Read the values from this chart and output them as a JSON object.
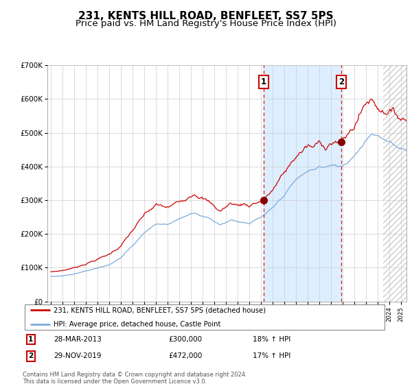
{
  "title": "231, KENTS HILL ROAD, BENFLEET, SS7 5PS",
  "subtitle": "Price paid vs. HM Land Registry's House Price Index (HPI)",
  "ylim": [
    0,
    700000
  ],
  "yticks": [
    0,
    100000,
    200000,
    300000,
    400000,
    500000,
    600000,
    700000
  ],
  "ytick_labels": [
    "£0",
    "£100K",
    "£200K",
    "£300K",
    "£400K",
    "£500K",
    "£600K",
    "£700K"
  ],
  "title_fontsize": 11,
  "subtitle_fontsize": 9.5,
  "legend_label_red": "231, KENTS HILL ROAD, BENFLEET, SS7 5PS (detached house)",
  "legend_label_blue": "HPI: Average price, detached house, Castle Point",
  "annotation1_date": "28-MAR-2013",
  "annotation1_price": "£300,000",
  "annotation1_hpi": "18% ↑ HPI",
  "annotation1_year": 2013.25,
  "annotation1_value": 300000,
  "annotation2_date": "29-NOV-2019",
  "annotation2_price": "£472,000",
  "annotation2_hpi": "17% ↑ HPI",
  "annotation2_year": 2019.92,
  "annotation2_value": 472000,
  "shading_start": 2013.25,
  "shading_end": 2019.92,
  "red_color": "#cc0000",
  "blue_color": "#7aaadd",
  "shade_color": "#ddeeff",
  "grid_color": "#cccccc",
  "hatch_start": 2023.5,
  "x_min": 1994.7,
  "x_max": 2025.5,
  "footer_text": "Contains HM Land Registry data © Crown copyright and database right 2024.\nThis data is licensed under the Open Government Licence v3.0."
}
